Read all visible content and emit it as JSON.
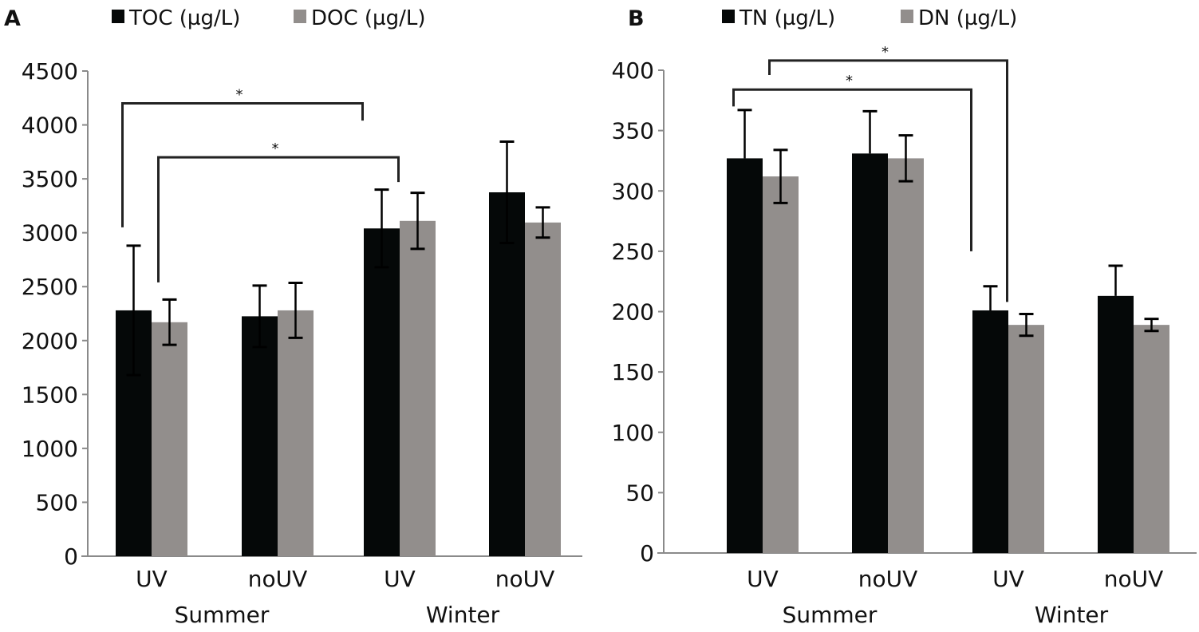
{
  "colors": {
    "series1": "#050808",
    "series2": "#928e8c",
    "axis": "#8a8a8a",
    "bracket": "#222222"
  },
  "chart_data": [
    {
      "panel": "A",
      "type": "bar",
      "categories": [
        "UV",
        "noUV",
        "UV",
        "noUV"
      ],
      "groups": [
        {
          "label": "Summer",
          "categories": [
            0,
            1
          ]
        },
        {
          "label": "Winter",
          "categories": [
            2,
            3
          ]
        }
      ],
      "series": [
        {
          "name": "TOC (µg/L)",
          "values": [
            2280,
            2225,
            3040,
            3375
          ],
          "errors": [
            600,
            285,
            360,
            470
          ]
        },
        {
          "name": "DOC (µg/L)",
          "values": [
            2170,
            2280,
            3110,
            3095
          ],
          "errors": [
            210,
            255,
            260,
            140
          ]
        }
      ],
      "yticks": [
        "0",
        "500",
        "1000",
        "1500",
        "2000",
        "2500",
        "3000",
        "3500",
        "4000",
        "4500"
      ],
      "ylim": [
        0,
        4500
      ],
      "legend": "top",
      "grid": false,
      "brackets": [
        {
          "from": [
            0,
            0
          ],
          "to": [
            2,
            0
          ],
          "start": 3050,
          "top": 4200,
          "end": 4040,
          "label": "*"
        },
        {
          "from": [
            0,
            1
          ],
          "to": [
            2,
            1
          ],
          "start": 2540,
          "top": 3700,
          "end": 3470,
          "label": "*"
        }
      ]
    },
    {
      "panel": "B",
      "type": "bar",
      "categories": [
        "UV",
        "noUV",
        "UV",
        "noUV"
      ],
      "groups": [
        {
          "label": "Summer",
          "categories": [
            0,
            1
          ]
        },
        {
          "label": "Winter",
          "categories": [
            2,
            3
          ]
        }
      ],
      "series": [
        {
          "name": "TN (µg/L)",
          "values": [
            327,
            331,
            201,
            213
          ],
          "errors": [
            40,
            35,
            20,
            25
          ],
          "error_mode": "up"
        },
        {
          "name": "DN (µg/L)",
          "values": [
            312,
            327,
            189,
            189
          ],
          "errors": [
            22,
            19,
            9,
            5
          ]
        }
      ],
      "yticks": [
        "0",
        "50",
        "100",
        "150",
        "200",
        "250",
        "300",
        "350",
        "400"
      ],
      "ylim": [
        0,
        400
      ],
      "legend": "top",
      "grid": false,
      "brackets": [
        {
          "from": [
            0,
            0
          ],
          "to": [
            2,
            0
          ],
          "start": 370,
          "top": 384,
          "end": 250,
          "label": "*"
        },
        {
          "from": [
            0,
            1
          ],
          "to": [
            2,
            1
          ],
          "start": 396,
          "top": 408,
          "end": 208,
          "label": "*"
        }
      ]
    }
  ]
}
